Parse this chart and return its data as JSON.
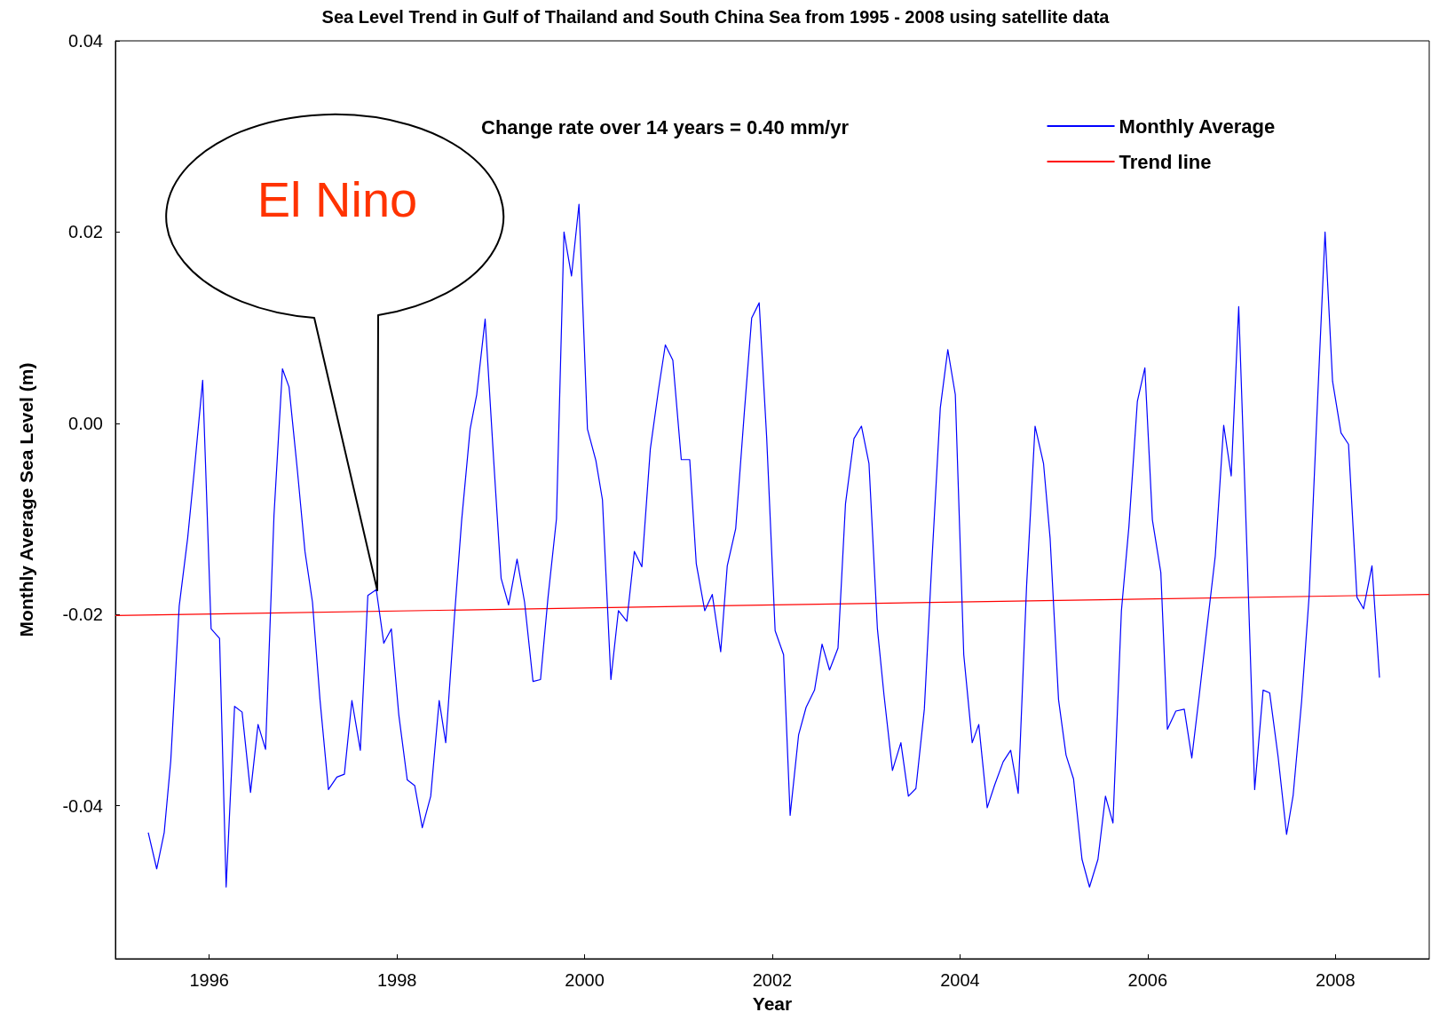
{
  "chart_data": {
    "type": "line",
    "title": "Sea Level Trend in Gulf of Thailand and South China Sea from 1995 - 2008 using satellite data",
    "xlabel": "Year",
    "ylabel": "Monthly Average Sea Level (m)",
    "xlim": [
      1995,
      2009
    ],
    "xticks": [
      1996,
      1998,
      2000,
      2002,
      2004,
      2006,
      2008
    ],
    "ylim": [
      -0.056,
      0.04
    ],
    "yticks": [
      -0.04,
      -0.02,
      {
        "value": 0,
        "label": "0.00"
      },
      0.02,
      0.04
    ],
    "legend": "top right",
    "marker": "none",
    "annotations": [
      "Change rate over 14 years = 0.40 mm/yr",
      "El Nino"
    ],
    "series": [
      {
        "name": "Monthly Average",
        "color": "#0000ff",
        "x": [
          1995.35,
          1995.44,
          1995.52,
          1995.59,
          1995.68,
          1995.77,
          1995.84,
          1995.93,
          1996.02,
          1996.11,
          1996.18,
          1996.27,
          1996.35,
          1996.44,
          1996.52,
          1996.6,
          1996.69,
          1996.78,
          1996.85,
          1996.94,
          1997.02,
          1997.1,
          1997.18,
          1997.27,
          1997.36,
          1997.44,
          1997.52,
          1997.61,
          1997.69,
          1997.78,
          1997.86,
          1997.94,
          1998.02,
          1998.11,
          1998.19,
          1998.27,
          1998.36,
          1998.45,
          1998.52,
          1998.61,
          1998.69,
          1998.78,
          1998.85,
          1998.94,
          1999.03,
          1999.11,
          1999.19,
          1999.28,
          1999.36,
          1999.45,
          1999.53,
          1999.61,
          1999.7,
          1999.78,
          1999.86,
          1999.94,
          2000.03,
          2000.12,
          2000.19,
          2000.28,
          2000.36,
          2000.45,
          2000.53,
          2000.61,
          2000.7,
          2000.79,
          2000.86,
          2000.94,
          2001.03,
          2001.12,
          2001.19,
          2001.28,
          2001.36,
          2001.45,
          2001.52,
          2001.61,
          2001.7,
          2001.78,
          2001.86,
          2001.94,
          2002.03,
          2002.12,
          2002.19,
          2002.28,
          2002.36,
          2002.45,
          2002.53,
          2002.61,
          2002.7,
          2002.78,
          2002.87,
          2002.95,
          2003.03,
          2003.12,
          2003.19,
          2003.28,
          2003.37,
          2003.45,
          2003.53,
          2003.62,
          2003.7,
          2003.79,
          2003.87,
          2003.95,
          2004.04,
          2004.13,
          2004.2,
          2004.29,
          2004.37,
          2004.46,
          2004.54,
          2004.62,
          2004.71,
          2004.8,
          2004.89,
          2004.96,
          2005.05,
          2005.13,
          2005.21,
          2005.3,
          2005.38,
          2005.47,
          2005.55,
          2005.63,
          2005.72,
          2005.8,
          2005.89,
          2005.97,
          2006.05,
          2006.14,
          2006.21,
          2006.3,
          2006.39,
          2006.47,
          2006.55,
          2006.63,
          2006.72,
          2006.81,
          2006.89,
          2006.97,
          2007.06,
          2007.14,
          2007.23,
          2007.3,
          2007.39,
          2007.48,
          2007.55,
          2007.64,
          2007.72,
          2007.81,
          2007.89,
          2007.97,
          2008.06,
          2008.14,
          2008.23,
          2008.3,
          2008.39,
          2008.47
        ],
        "values": [
          -0.0428,
          -0.0466,
          -0.0428,
          -0.0353,
          -0.0191,
          -0.012,
          -0.005,
          0.0045,
          -0.0215,
          -0.0225,
          -0.0485,
          -0.0296,
          -0.0302,
          -0.0386,
          -0.0315,
          -0.0341,
          -0.0096,
          0.0057,
          0.0038,
          -0.005,
          -0.0134,
          -0.0187,
          -0.0289,
          -0.0383,
          -0.037,
          -0.0367,
          -0.029,
          -0.0342,
          -0.018,
          -0.0174,
          -0.023,
          -0.0215,
          -0.0305,
          -0.0373,
          -0.0379,
          -0.0423,
          -0.039,
          -0.029,
          -0.0334,
          -0.0206,
          -0.0101,
          -0.0006,
          0.003,
          0.0109,
          -0.0037,
          -0.0162,
          -0.019,
          -0.0142,
          -0.0187,
          -0.027,
          -0.0268,
          -0.0182,
          -0.01,
          0.02,
          0.0154,
          0.0229,
          -0.0006,
          -0.0039,
          -0.008,
          -0.0268,
          -0.0196,
          -0.0207,
          -0.0134,
          -0.015,
          -0.0027,
          0.0037,
          0.0082,
          0.0066,
          -0.0038,
          -0.0038,
          -0.0147,
          -0.0196,
          -0.0179,
          -0.0239,
          -0.0149,
          -0.011,
          0.0009,
          0.011,
          0.0126,
          -0.0015,
          -0.0217,
          -0.0242,
          -0.041,
          -0.0326,
          -0.0297,
          -0.0279,
          -0.0231,
          -0.0258,
          -0.0235,
          -0.0084,
          -0.0016,
          -0.0003,
          -0.0042,
          -0.0215,
          -0.0284,
          -0.0363,
          -0.0334,
          -0.039,
          -0.0382,
          -0.0299,
          -0.0145,
          0.0016,
          0.0077,
          0.003,
          -0.0242,
          -0.0334,
          -0.0315,
          -0.0402,
          -0.0378,
          -0.0354,
          -0.0342,
          -0.0387,
          -0.0169,
          -0.0003,
          -0.0042,
          -0.012,
          -0.0289,
          -0.0347,
          -0.0372,
          -0.0456,
          -0.0485,
          -0.0456,
          -0.039,
          -0.0418,
          -0.0196,
          -0.0108,
          0.0023,
          0.0058,
          -0.0101,
          -0.0156,
          -0.032,
          -0.0301,
          -0.0299,
          -0.035,
          -0.0284,
          -0.0215,
          -0.0139,
          -0.0002,
          -0.0055,
          0.0122,
          -0.0139,
          -0.0383,
          -0.0279,
          -0.0282,
          -0.0349,
          -0.043,
          -0.0389,
          -0.0291,
          -0.0181,
          0.0023,
          0.02,
          0.0044,
          -0.001,
          -0.0022,
          -0.0182,
          -0.0194,
          -0.0149,
          -0.0266
        ]
      },
      {
        "name": "Trend line",
        "color": "#ff0000",
        "x": [
          1995,
          2009
        ],
        "values": [
          -0.0201,
          -0.0179
        ]
      }
    ]
  }
}
